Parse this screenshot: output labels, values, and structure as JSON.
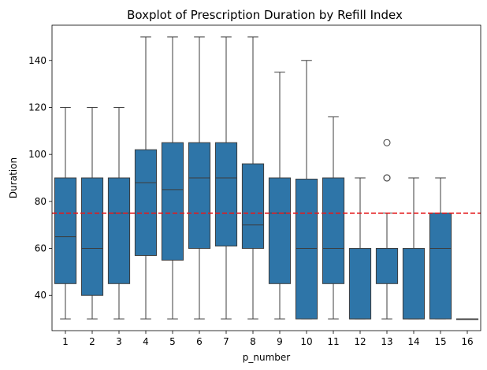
{
  "chart_data": {
    "type": "boxplot",
    "title": "Boxplot of Prescription Duration by Refill Index",
    "xlabel": "p_number",
    "ylabel": "Duration",
    "ylim": [
      25,
      155
    ],
    "yticks": [
      40,
      60,
      80,
      100,
      120,
      140
    ],
    "grid": false,
    "box_color": "#2e75a8",
    "reference_line": {
      "y": 75,
      "color": "#e41a1c",
      "style": "dashed"
    },
    "categories": [
      "1",
      "2",
      "3",
      "4",
      "5",
      "6",
      "7",
      "8",
      "9",
      "10",
      "11",
      "12",
      "13",
      "14",
      "15",
      "16"
    ],
    "boxes": [
      {
        "category": "1",
        "whisker_low": 30,
        "q1": 45,
        "median": 65,
        "q3": 90,
        "whisker_high": 120,
        "outliers": []
      },
      {
        "category": "2",
        "whisker_low": 30,
        "q1": 40,
        "median": 60,
        "q3": 90,
        "whisker_high": 120,
        "outliers": []
      },
      {
        "category": "3",
        "whisker_low": 30,
        "q1": 45,
        "median": 75,
        "q3": 90,
        "whisker_high": 120,
        "outliers": []
      },
      {
        "category": "4",
        "whisker_low": 30,
        "q1": 57,
        "median": 88,
        "q3": 102,
        "whisker_high": 150,
        "outliers": []
      },
      {
        "category": "5",
        "whisker_low": 30,
        "q1": 55,
        "median": 85,
        "q3": 105,
        "whisker_high": 150,
        "outliers": []
      },
      {
        "category": "6",
        "whisker_low": 30,
        "q1": 60,
        "median": 90,
        "q3": 105,
        "whisker_high": 150,
        "outliers": []
      },
      {
        "category": "7",
        "whisker_low": 30,
        "q1": 61,
        "median": 90,
        "q3": 105,
        "whisker_high": 150,
        "outliers": []
      },
      {
        "category": "8",
        "whisker_low": 30,
        "q1": 60,
        "median": 70,
        "q3": 96,
        "whisker_high": 150,
        "outliers": []
      },
      {
        "category": "9",
        "whisker_low": 30,
        "q1": 45,
        "median": 75,
        "q3": 90,
        "whisker_high": 135,
        "outliers": []
      },
      {
        "category": "10",
        "whisker_low": 30,
        "q1": 30,
        "median": 60,
        "q3": 89.5,
        "whisker_high": 140,
        "outliers": []
      },
      {
        "category": "11",
        "whisker_low": 30,
        "q1": 45,
        "median": 60,
        "q3": 90,
        "whisker_high": 116,
        "outliers": []
      },
      {
        "category": "12",
        "whisker_low": 30,
        "q1": 30,
        "median": 30,
        "q3": 60,
        "whisker_high": 90,
        "outliers": []
      },
      {
        "category": "13",
        "whisker_low": 30,
        "q1": 45,
        "median": 60,
        "q3": 60,
        "whisker_high": 75,
        "outliers": [
          90,
          90,
          105
        ]
      },
      {
        "category": "14",
        "whisker_low": 30,
        "q1": 30,
        "median": 30,
        "q3": 60,
        "whisker_high": 90,
        "outliers": []
      },
      {
        "category": "15",
        "whisker_low": 30,
        "q1": 30,
        "median": 60,
        "q3": 75,
        "whisker_high": 90,
        "outliers": []
      },
      {
        "category": "16",
        "whisker_low": 30,
        "q1": 30,
        "median": 30,
        "q3": 30,
        "whisker_high": 30,
        "outliers": []
      }
    ]
  }
}
